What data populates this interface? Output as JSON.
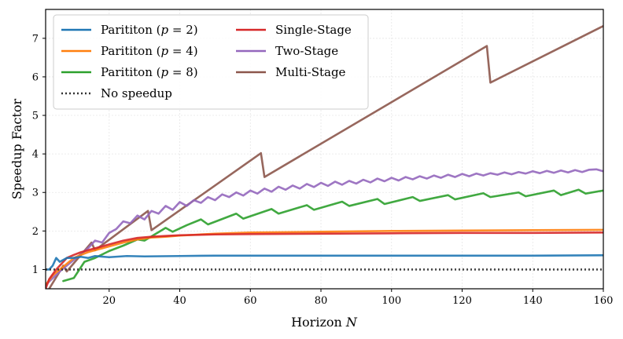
{
  "chart_data": {
    "type": "line",
    "xlabel": "Horizon N",
    "ylabel": "Speedup Factor",
    "xlim": [
      2,
      160
    ],
    "ylim": [
      0.5,
      7.75
    ],
    "grid": true,
    "legend_position": "top-left",
    "x_ticks": [
      20,
      40,
      60,
      80,
      100,
      120,
      140,
      160
    ],
    "y_ticks": [
      1,
      2,
      3,
      4,
      5,
      6,
      7
    ],
    "series": [
      {
        "name": "Parititon (p = 2)",
        "color": "#1f77b4",
        "style": "solid",
        "points": [
          [
            2,
            1.0
          ],
          [
            3,
            1.0
          ],
          [
            4,
            1.1
          ],
          [
            5,
            1.3
          ],
          [
            6,
            1.2
          ],
          [
            8,
            1.3
          ],
          [
            10,
            1.3
          ],
          [
            12,
            1.33
          ],
          [
            14,
            1.3
          ],
          [
            16,
            1.35
          ],
          [
            20,
            1.32
          ],
          [
            25,
            1.35
          ],
          [
            30,
            1.34
          ],
          [
            40,
            1.35
          ],
          [
            50,
            1.36
          ],
          [
            60,
            1.36
          ],
          [
            80,
            1.36
          ],
          [
            100,
            1.36
          ],
          [
            120,
            1.36
          ],
          [
            140,
            1.36
          ],
          [
            160,
            1.37
          ]
        ]
      },
      {
        "name": "Parititon (p = 4)",
        "color": "#ff7f0e",
        "style": "solid",
        "points": [
          [
            2,
            0.6
          ],
          [
            4,
            0.85
          ],
          [
            6,
            1.0
          ],
          [
            8,
            1.15
          ],
          [
            10,
            1.3
          ],
          [
            12,
            1.38
          ],
          [
            14,
            1.45
          ],
          [
            16,
            1.5
          ],
          [
            18,
            1.55
          ],
          [
            20,
            1.6
          ],
          [
            24,
            1.7
          ],
          [
            28,
            1.78
          ],
          [
            32,
            1.83
          ],
          [
            36,
            1.85
          ],
          [
            40,
            1.88
          ],
          [
            50,
            1.93
          ],
          [
            60,
            1.96
          ],
          [
            80,
            1.98
          ],
          [
            100,
            2.0
          ],
          [
            120,
            2.01
          ],
          [
            140,
            2.02
          ],
          [
            160,
            2.03
          ]
        ]
      },
      {
        "name": "Parititon (p = 8)",
        "color": "#2ca02c",
        "style": "solid",
        "points": [
          [
            7,
            0.7
          ],
          [
            10,
            0.78
          ],
          [
            13,
            1.2
          ],
          [
            16,
            1.3
          ],
          [
            20,
            1.48
          ],
          [
            24,
            1.62
          ],
          [
            28,
            1.78
          ],
          [
            30,
            1.75
          ],
          [
            36,
            2.08
          ],
          [
            38,
            1.98
          ],
          [
            42,
            2.15
          ],
          [
            46,
            2.3
          ],
          [
            48,
            2.17
          ],
          [
            56,
            2.45
          ],
          [
            58,
            2.32
          ],
          [
            66,
            2.57
          ],
          [
            68,
            2.45
          ],
          [
            76,
            2.67
          ],
          [
            78,
            2.55
          ],
          [
            86,
            2.76
          ],
          [
            88,
            2.65
          ],
          [
            96,
            2.83
          ],
          [
            98,
            2.7
          ],
          [
            106,
            2.88
          ],
          [
            108,
            2.78
          ],
          [
            116,
            2.93
          ],
          [
            118,
            2.82
          ],
          [
            126,
            2.98
          ],
          [
            128,
            2.88
          ],
          [
            136,
            3.0
          ],
          [
            138,
            2.9
          ],
          [
            146,
            3.05
          ],
          [
            148,
            2.93
          ],
          [
            153,
            3.07
          ],
          [
            155,
            2.97
          ],
          [
            160,
            3.05
          ]
        ]
      },
      {
        "name": "No speedup",
        "color": "#333333",
        "style": "dotted",
        "points": [
          [
            2,
            1.0
          ],
          [
            160,
            1.0
          ]
        ]
      },
      {
        "name": "Single-Stage",
        "color": "#d62728",
        "style": "solid",
        "points": [
          [
            2,
            0.5
          ],
          [
            3,
            0.75
          ],
          [
            5,
            1.0
          ],
          [
            8,
            1.3
          ],
          [
            10,
            1.38
          ],
          [
            12,
            1.45
          ],
          [
            14,
            1.5
          ],
          [
            16,
            1.55
          ],
          [
            20,
            1.65
          ],
          [
            24,
            1.75
          ],
          [
            28,
            1.82
          ],
          [
            32,
            1.85
          ],
          [
            36,
            1.87
          ],
          [
            40,
            1.89
          ],
          [
            50,
            1.91
          ],
          [
            60,
            1.92
          ],
          [
            80,
            1.93
          ],
          [
            100,
            1.94
          ],
          [
            120,
            1.95
          ],
          [
            140,
            1.95
          ],
          [
            160,
            1.96
          ]
        ]
      },
      {
        "name": "Two-Stage",
        "color": "#9467bd",
        "style": "solid",
        "points": [
          [
            2,
            0.6
          ],
          [
            6,
            0.95
          ],
          [
            10,
            1.25
          ],
          [
            14,
            1.55
          ],
          [
            16,
            1.75
          ],
          [
            18,
            1.7
          ],
          [
            20,
            1.95
          ],
          [
            22,
            2.05
          ],
          [
            24,
            2.25
          ],
          [
            26,
            2.2
          ],
          [
            28,
            2.4
          ],
          [
            30,
            2.3
          ],
          [
            32,
            2.52
          ],
          [
            34,
            2.45
          ],
          [
            36,
            2.65
          ],
          [
            38,
            2.55
          ],
          [
            40,
            2.75
          ],
          [
            42,
            2.65
          ],
          [
            44,
            2.8
          ],
          [
            46,
            2.73
          ],
          [
            48,
            2.88
          ],
          [
            50,
            2.8
          ],
          [
            52,
            2.95
          ],
          [
            54,
            2.88
          ],
          [
            56,
            3.0
          ],
          [
            58,
            2.92
          ],
          [
            60,
            3.05
          ],
          [
            62,
            2.97
          ],
          [
            64,
            3.1
          ],
          [
            66,
            3.02
          ],
          [
            68,
            3.15
          ],
          [
            70,
            3.07
          ],
          [
            72,
            3.18
          ],
          [
            74,
            3.1
          ],
          [
            76,
            3.22
          ],
          [
            78,
            3.14
          ],
          [
            80,
            3.25
          ],
          [
            82,
            3.17
          ],
          [
            84,
            3.28
          ],
          [
            86,
            3.2
          ],
          [
            88,
            3.3
          ],
          [
            90,
            3.23
          ],
          [
            92,
            3.33
          ],
          [
            94,
            3.26
          ],
          [
            96,
            3.36
          ],
          [
            98,
            3.29
          ],
          [
            100,
            3.38
          ],
          [
            102,
            3.31
          ],
          [
            104,
            3.4
          ],
          [
            106,
            3.34
          ],
          [
            108,
            3.42
          ],
          [
            110,
            3.36
          ],
          [
            112,
            3.44
          ],
          [
            114,
            3.38
          ],
          [
            116,
            3.46
          ],
          [
            118,
            3.4
          ],
          [
            120,
            3.48
          ],
          [
            122,
            3.42
          ],
          [
            124,
            3.49
          ],
          [
            126,
            3.44
          ],
          [
            128,
            3.5
          ],
          [
            130,
            3.46
          ],
          [
            132,
            3.52
          ],
          [
            134,
            3.47
          ],
          [
            136,
            3.53
          ],
          [
            138,
            3.49
          ],
          [
            140,
            3.55
          ],
          [
            142,
            3.5
          ],
          [
            144,
            3.56
          ],
          [
            146,
            3.51
          ],
          [
            148,
            3.57
          ],
          [
            150,
            3.52
          ],
          [
            152,
            3.58
          ],
          [
            154,
            3.53
          ],
          [
            156,
            3.59
          ],
          [
            158,
            3.6
          ],
          [
            160,
            3.55
          ]
        ]
      },
      {
        "name": "Multi-Stage",
        "color": "#8c564b",
        "style": "solid",
        "points": [
          [
            3,
            0.5
          ],
          [
            7,
            1.1
          ],
          [
            8,
            0.95
          ],
          [
            15,
            1.7
          ],
          [
            16,
            1.5
          ],
          [
            31,
            2.52
          ],
          [
            32,
            2.02
          ],
          [
            63,
            4.02
          ],
          [
            64,
            3.4
          ],
          [
            127,
            6.8
          ],
          [
            128,
            5.85
          ],
          [
            160,
            7.32
          ]
        ]
      }
    ]
  }
}
